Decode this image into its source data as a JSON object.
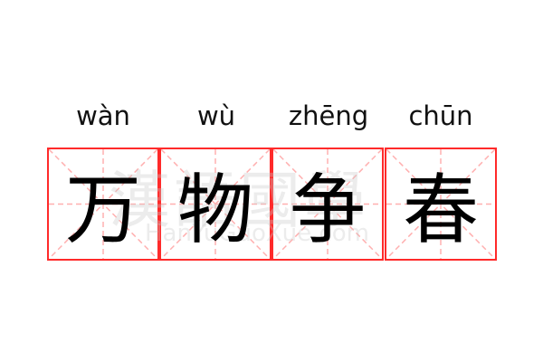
{
  "idiom": [
    {
      "pinyin": "wàn",
      "char": "万"
    },
    {
      "pinyin": "wù",
      "char": "物"
    },
    {
      "pinyin": "zhēng",
      "char": "争"
    },
    {
      "pinyin": "chūn",
      "char": "春"
    }
  ],
  "watermark": {
    "chinese": "漢語國學",
    "latin": "HanYuGuoXue.com"
  },
  "colors": {
    "grid_border": "#ff2a2a",
    "guide_lines": "#ffb0b0",
    "text": "#000000"
  }
}
